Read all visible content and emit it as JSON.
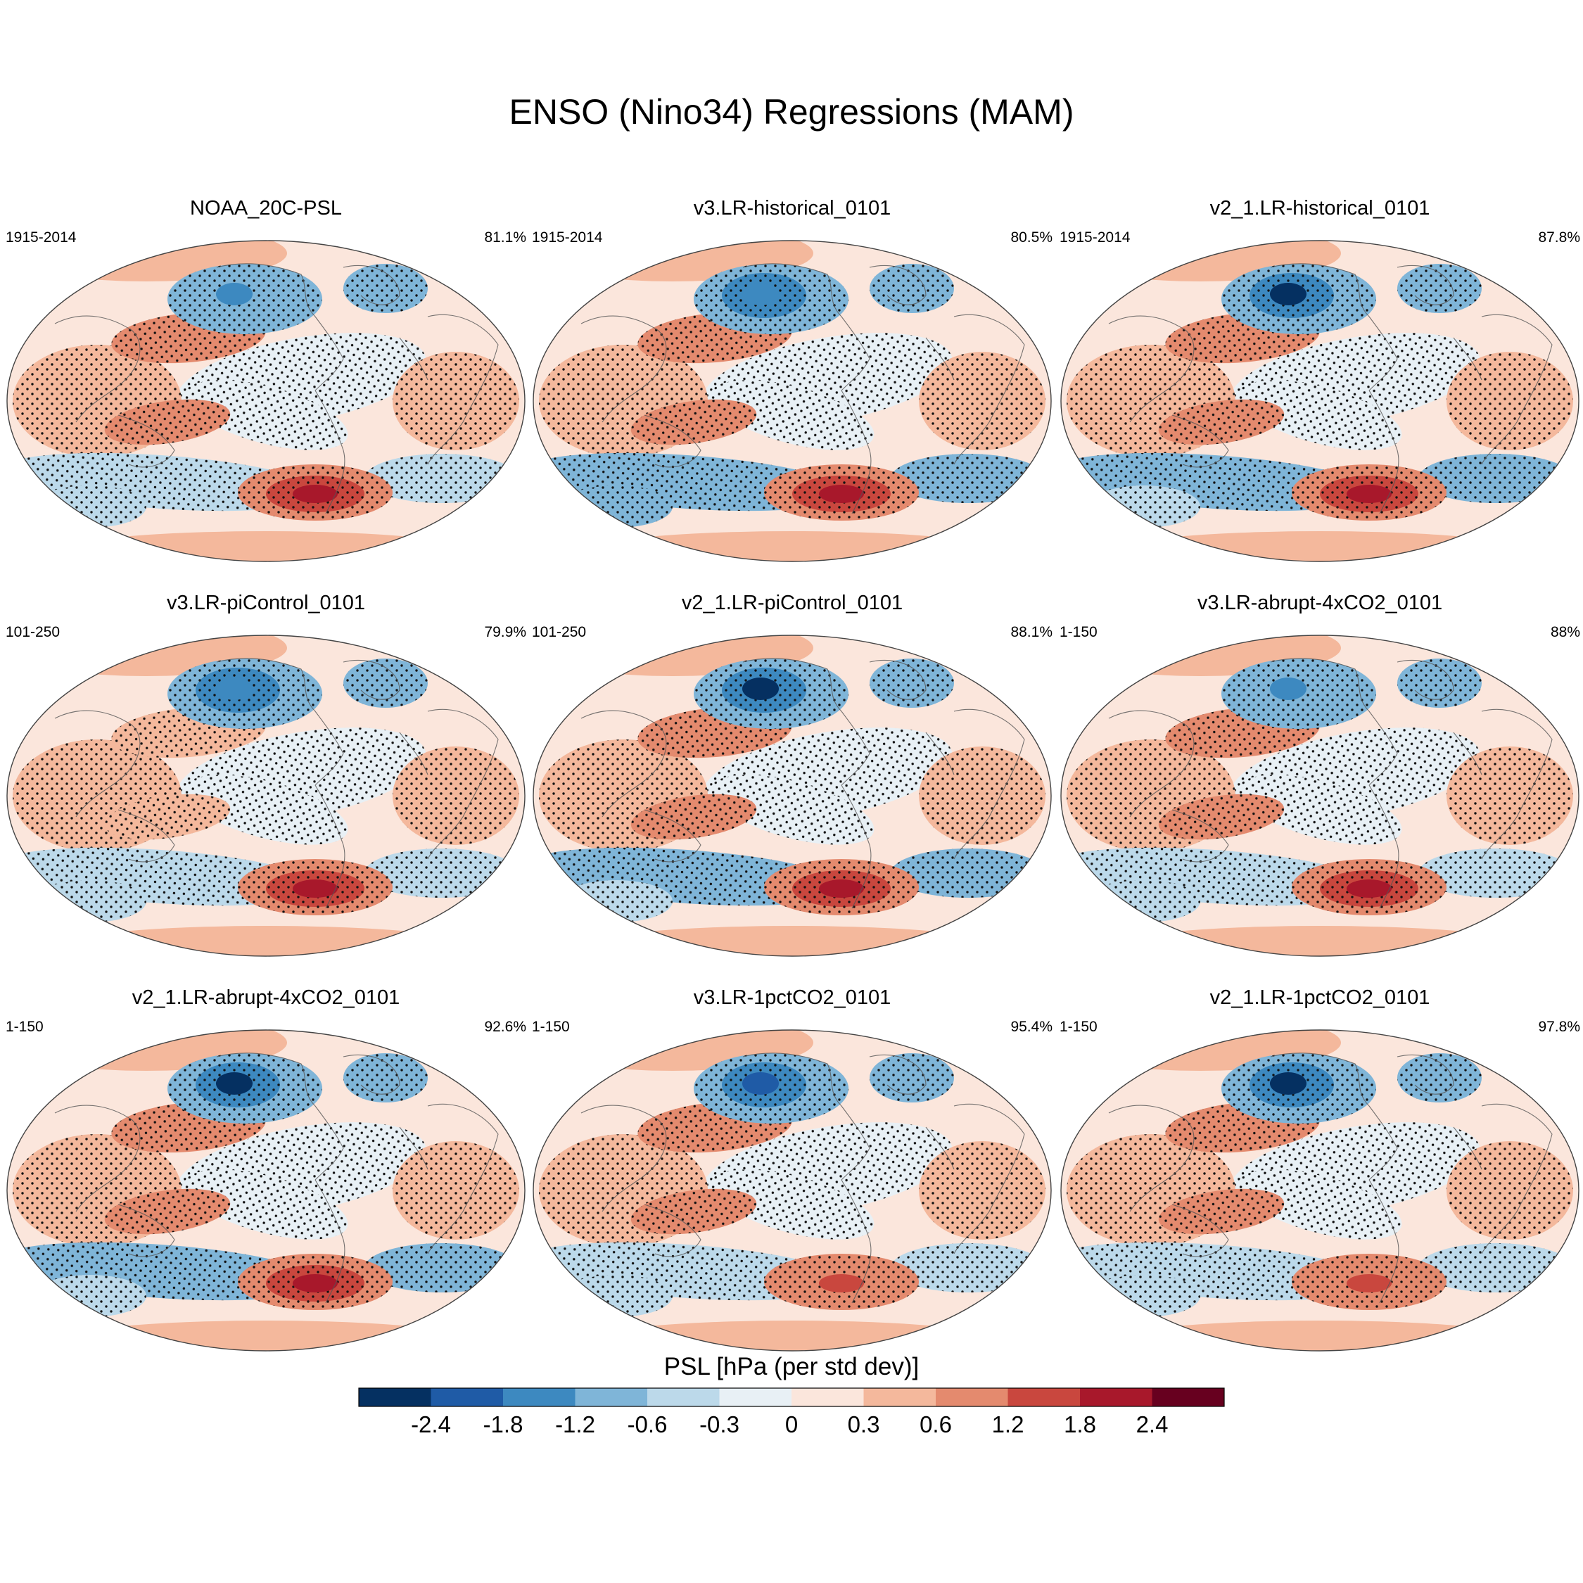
{
  "figure": {
    "title": "ENSO (Nino34) Regressions (MAM)",
    "colorbar_title": "PSL [hPa (per std dev)]"
  },
  "chart_data": {
    "type": "heatmap",
    "projection": "robinson-style global maps with coastlines and significance stippling",
    "colorbar": {
      "levels": [
        -2.4,
        -1.8,
        -1.2,
        -0.6,
        -0.3,
        0,
        0.3,
        0.6,
        1.2,
        1.8,
        2.4
      ],
      "tick_labels": [
        "-2.4",
        "-1.8",
        "-1.2",
        "-0.6",
        "-0.3",
        "0",
        "0.3",
        "0.6",
        "1.2",
        "1.8",
        "2.4"
      ],
      "colors": [
        "#053061",
        "#1f5ba6",
        "#3d89c0",
        "#7fb5d8",
        "#bcd9ea",
        "#e8f0f5",
        "#fbe6dc",
        "#f4b89c",
        "#e48a6e",
        "#c9473e",
        "#a8182b",
        "#67001f"
      ]
    },
    "panels": [
      {
        "title": "NOAA_20C-PSL",
        "period": "1915-2014",
        "pattern_correlation": "81.1%"
      },
      {
        "title": "v3.LR-historical_0101",
        "period": "1915-2014",
        "pattern_correlation": "80.5%"
      },
      {
        "title": "v2_1.LR-historical_0101",
        "period": "1915-2014",
        "pattern_correlation": "87.8%"
      },
      {
        "title": "v3.LR-piControl_0101",
        "period": "101-250",
        "pattern_correlation": "79.9%"
      },
      {
        "title": "v2_1.LR-piControl_0101",
        "period": "101-250",
        "pattern_correlation": "88.1%"
      },
      {
        "title": "v3.LR-abrupt-4xCO2_0101",
        "period": "1-150",
        "pattern_correlation": "88%"
      },
      {
        "title": "v2_1.LR-abrupt-4xCO2_0101",
        "period": "1-150",
        "pattern_correlation": "92.6%"
      },
      {
        "title": "v3.LR-1pctCO2_0101",
        "period": "1-150",
        "pattern_correlation": "95.4%"
      },
      {
        "title": "v2_1.LR-1pctCO2_0101",
        "period": "1-150",
        "pattern_correlation": "97.8%"
      }
    ],
    "anomaly_features_hpa": {
      "north_pacific_low": -1.8,
      "tropical_west_pacific_high": 0.6,
      "south_pacific_high": 1.8,
      "southern_ocean_low": -0.6,
      "tropical_east_pacific_low": -0.3
    }
  }
}
